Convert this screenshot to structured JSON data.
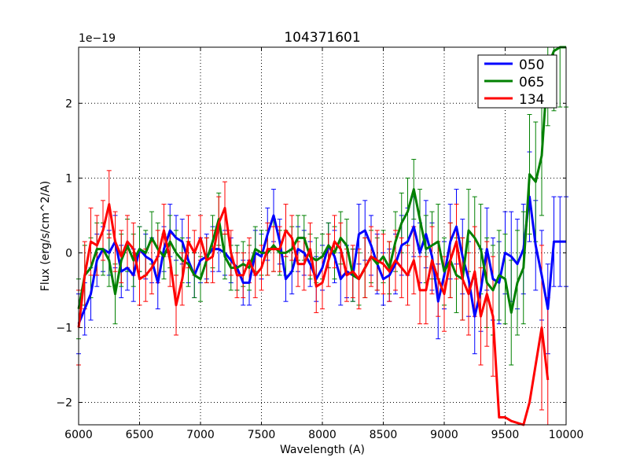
{
  "chart_data": {
    "type": "line",
    "title": "104371601",
    "xlabel": "Wavelength (A)",
    "ylabel": "Flux (erg/s/cm^2/A)",
    "y_scale_label": "1e−19",
    "xlim": [
      6000,
      10000
    ],
    "ylim": [
      -2.3,
      2.75
    ],
    "xticks": [
      6000,
      6500,
      7000,
      7500,
      8000,
      8500,
      9000,
      9500,
      10000
    ],
    "yticks": [
      -2,
      -1,
      0,
      1,
      2
    ],
    "ytick_labels": [
      "−2",
      "−1",
      "0",
      "1",
      "2"
    ],
    "grid": true,
    "legend_position": "top-right",
    "series": [
      {
        "name": "050",
        "color": "#0000ff",
        "x": [
          6000,
          6050,
          6100,
          6150,
          6200,
          6250,
          6300,
          6350,
          6400,
          6450,
          6500,
          6550,
          6600,
          6650,
          6700,
          6750,
          6800,
          6850,
          6900,
          6950,
          7000,
          7050,
          7100,
          7150,
          7200,
          7250,
          7300,
          7350,
          7400,
          7450,
          7500,
          7550,
          7600,
          7650,
          7700,
          7750,
          7800,
          7850,
          7900,
          7950,
          8000,
          8050,
          8100,
          8150,
          8200,
          8250,
          8300,
          8350,
          8400,
          8450,
          8500,
          8550,
          8600,
          8650,
          8700,
          8750,
          8800,
          8850,
          8900,
          8950,
          9000,
          9050,
          9100,
          9150,
          9200,
          9250,
          9300,
          9350,
          9400,
          9450,
          9500,
          9550,
          9600,
          9650,
          9700,
          9750,
          9800,
          9850,
          9900,
          9950,
          10000
        ],
        "values": [
          -0.95,
          -0.75,
          -0.55,
          -0.1,
          0.05,
          0.0,
          0.15,
          -0.25,
          -0.2,
          -0.3,
          0.05,
          -0.05,
          -0.1,
          -0.4,
          0.05,
          0.3,
          0.2,
          0.15,
          -0.1,
          -0.3,
          -0.1,
          -0.05,
          0.05,
          0.05,
          0.0,
          -0.1,
          -0.2,
          -0.4,
          -0.4,
          0.0,
          -0.05,
          0.25,
          0.5,
          0.15,
          -0.35,
          -0.25,
          0.05,
          0.0,
          -0.15,
          -0.35,
          -0.2,
          0.1,
          -0.05,
          -0.35,
          -0.25,
          -0.3,
          0.25,
          0.3,
          0.1,
          -0.15,
          -0.35,
          -0.3,
          -0.15,
          0.1,
          0.15,
          0.35,
          0.0,
          0.25,
          -0.05,
          -0.65,
          -0.3,
          0.15,
          0.35,
          -0.05,
          -0.35,
          -0.85,
          -0.5,
          0.05,
          -0.35,
          -0.4,
          0.0,
          -0.05,
          -0.15,
          0.05,
          0.75,
          0.1,
          -0.3,
          -0.75,
          0.15,
          0.15,
          0.15
        ],
        "errors": [
          0.4,
          0.35,
          0.35,
          0.35,
          0.3,
          0.3,
          0.35,
          0.35,
          0.3,
          0.35,
          0.3,
          0.3,
          0.3,
          0.35,
          0.3,
          0.35,
          0.3,
          0.3,
          0.3,
          0.3,
          0.3,
          0.3,
          0.3,
          0.3,
          0.3,
          0.3,
          0.3,
          0.3,
          0.3,
          0.3,
          0.3,
          0.35,
          0.35,
          0.3,
          0.3,
          0.3,
          0.3,
          0.3,
          0.3,
          0.3,
          0.3,
          0.3,
          0.35,
          0.35,
          0.35,
          0.35,
          0.4,
          0.4,
          0.4,
          0.4,
          0.35,
          0.35,
          0.4,
          0.4,
          0.45,
          0.4,
          0.4,
          0.45,
          0.45,
          0.5,
          0.45,
          0.5,
          0.5,
          0.5,
          0.5,
          0.5,
          0.55,
          0.55,
          0.55,
          0.55,
          0.55,
          0.6,
          0.6,
          0.6,
          0.6,
          0.6,
          0.6,
          0.6,
          0.6,
          0.6,
          0.6
        ]
      },
      {
        "name": "065",
        "color": "#008000",
        "x": [
          6000,
          6050,
          6100,
          6150,
          6200,
          6250,
          6300,
          6350,
          6400,
          6450,
          6500,
          6550,
          6600,
          6650,
          6700,
          6750,
          6800,
          6850,
          6900,
          6950,
          7000,
          7050,
          7100,
          7150,
          7200,
          7250,
          7300,
          7350,
          7400,
          7450,
          7500,
          7550,
          7600,
          7650,
          7700,
          7750,
          7800,
          7850,
          7900,
          7950,
          8000,
          8050,
          8100,
          8150,
          8200,
          8250,
          8300,
          8350,
          8400,
          8450,
          8500,
          8550,
          8600,
          8650,
          8700,
          8750,
          8800,
          8850,
          8900,
          8950,
          9000,
          9050,
          9100,
          9150,
          9200,
          9250,
          9300,
          9350,
          9400,
          9450,
          9500,
          9550,
          9600,
          9650,
          9700,
          9750,
          9800,
          9850,
          9900,
          9950,
          10000
        ],
        "values": [
          -0.75,
          -0.3,
          -0.2,
          0.05,
          0.05,
          -0.1,
          -0.55,
          -0.1,
          0.1,
          -0.1,
          0.05,
          0.0,
          0.2,
          0.05,
          -0.05,
          0.15,
          0.0,
          -0.1,
          -0.15,
          -0.3,
          -0.35,
          -0.1,
          0.15,
          0.45,
          -0.05,
          -0.2,
          -0.2,
          -0.15,
          -0.2,
          0.05,
          0.0,
          0.0,
          0.1,
          0.0,
          0.0,
          0.05,
          0.2,
          0.2,
          -0.05,
          -0.1,
          -0.05,
          0.1,
          0.0,
          0.2,
          0.1,
          -0.3,
          -0.35,
          -0.2,
          -0.05,
          -0.15,
          -0.05,
          -0.2,
          0.15,
          0.4,
          0.55,
          0.85,
          0.45,
          0.05,
          0.1,
          0.15,
          -0.25,
          -0.1,
          -0.3,
          -0.35,
          0.3,
          0.2,
          0.05,
          -0.4,
          -0.5,
          -0.3,
          -0.35,
          -0.8,
          -0.4,
          -0.2,
          1.05,
          0.95,
          1.3,
          2.5,
          2.7,
          2.75,
          2.75
        ],
        "errors": [
          0.4,
          0.4,
          0.4,
          0.35,
          0.35,
          0.35,
          0.4,
          0.35,
          0.35,
          0.35,
          0.3,
          0.3,
          0.35,
          0.35,
          0.3,
          0.35,
          0.3,
          0.3,
          0.3,
          0.3,
          0.3,
          0.3,
          0.35,
          0.35,
          0.3,
          0.3,
          0.3,
          0.3,
          0.3,
          0.3,
          0.3,
          0.3,
          0.35,
          0.3,
          0.3,
          0.3,
          0.3,
          0.3,
          0.3,
          0.3,
          0.3,
          0.3,
          0.35,
          0.35,
          0.35,
          0.35,
          0.35,
          0.4,
          0.35,
          0.35,
          0.35,
          0.35,
          0.4,
          0.4,
          0.45,
          0.4,
          0.4,
          0.45,
          0.45,
          0.5,
          0.45,
          0.5,
          0.5,
          0.55,
          0.55,
          0.55,
          0.6,
          0.6,
          0.6,
          0.6,
          0.6,
          0.7,
          0.7,
          0.75,
          0.8,
          0.8,
          0.8,
          0.8,
          0.8,
          0.8,
          0.8
        ]
      },
      {
        "name": "134",
        "color": "#ff0000",
        "x": [
          6000,
          6050,
          6100,
          6150,
          6200,
          6250,
          6300,
          6350,
          6400,
          6450,
          6500,
          6550,
          6600,
          6650,
          6700,
          6750,
          6800,
          6850,
          6900,
          6950,
          7000,
          7050,
          7100,
          7150,
          7200,
          7250,
          7300,
          7350,
          7400,
          7450,
          7500,
          7550,
          7600,
          7650,
          7700,
          7750,
          7800,
          7850,
          7900,
          7950,
          8000,
          8050,
          8100,
          8150,
          8200,
          8250,
          8300,
          8350,
          8400,
          8450,
          8500,
          8550,
          8600,
          8650,
          8700,
          8750,
          8800,
          8850,
          8900,
          8950,
          9000,
          9050,
          9100,
          9150,
          9200,
          9250,
          9300,
          9350,
          9400,
          9450,
          9500,
          9550,
          9650,
          9700,
          9800,
          9850
        ],
        "values": [
          -1.0,
          -0.3,
          0.15,
          0.1,
          0.3,
          0.65,
          0.15,
          -0.05,
          0.15,
          0.05,
          -0.35,
          -0.3,
          -0.2,
          -0.05,
          0.3,
          -0.1,
          -0.7,
          -0.35,
          0.15,
          0.0,
          0.2,
          -0.1,
          -0.05,
          0.4,
          0.6,
          0.0,
          -0.3,
          -0.3,
          -0.1,
          -0.3,
          -0.2,
          0.05,
          0.05,
          0.05,
          0.3,
          0.2,
          -0.15,
          -0.15,
          0.05,
          -0.45,
          -0.4,
          -0.1,
          0.15,
          0.05,
          -0.3,
          -0.25,
          -0.35,
          -0.2,
          -0.05,
          -0.1,
          -0.15,
          -0.25,
          -0.1,
          -0.2,
          -0.3,
          -0.1,
          -0.5,
          -0.5,
          -0.1,
          -0.35,
          -0.55,
          -0.1,
          0.15,
          -0.35,
          -0.55,
          -0.25,
          -0.85,
          -0.55,
          -0.85,
          -2.2,
          -2.2,
          -2.25,
          -2.3,
          -2.0,
          -1.0,
          -1.7
        ],
        "errors": [
          0.5,
          0.45,
          0.45,
          0.4,
          0.4,
          0.45,
          0.4,
          0.35,
          0.35,
          0.35,
          0.35,
          0.35,
          0.35,
          0.35,
          0.35,
          0.35,
          0.4,
          0.35,
          0.35,
          0.3,
          0.3,
          0.3,
          0.35,
          0.35,
          0.35,
          0.3,
          0.3,
          0.3,
          0.3,
          0.3,
          0.3,
          0.35,
          0.3,
          0.3,
          0.35,
          0.3,
          0.3,
          0.35,
          0.35,
          0.35,
          0.35,
          0.35,
          0.35,
          0.35,
          0.35,
          0.35,
          0.4,
          0.4,
          0.4,
          0.4,
          0.4,
          0.4,
          0.4,
          0.4,
          0.4,
          0.45,
          0.45,
          0.45,
          0.45,
          0.5,
          0.5,
          0.5,
          0.5,
          0.55,
          0.55,
          0.6,
          0.65,
          0.7,
          0.8,
          0.0,
          0.0,
          0.0,
          0.0,
          0.0,
          1.1,
          1.1
        ]
      }
    ]
  }
}
